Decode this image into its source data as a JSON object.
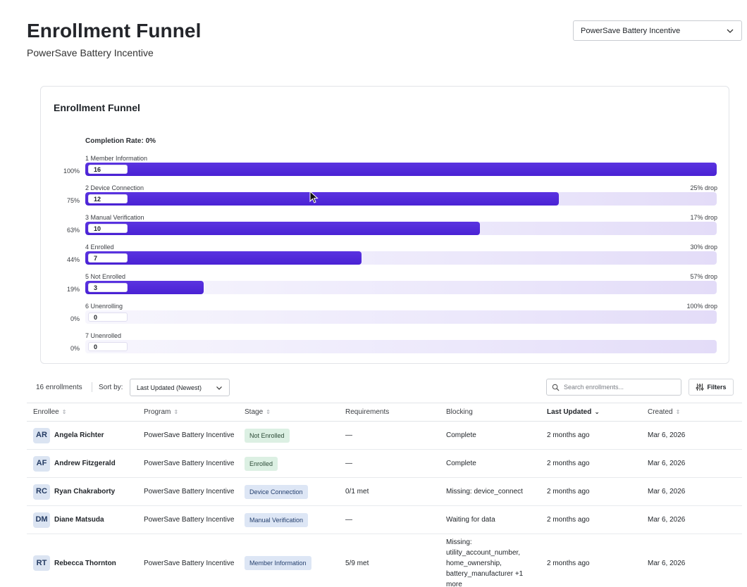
{
  "header": {
    "title": "Enrollment Funnel",
    "subtitle": "PowerSave Battery Incentive",
    "program_select_value": "PowerSave Battery Incentive"
  },
  "funnel": {
    "title": "Enrollment Funnel",
    "completion_label": "Completion Rate:",
    "completion_value": "0%",
    "stages": [
      {
        "label": "1 Member Information",
        "pct": "100%",
        "count": "16",
        "drop": "",
        "fill": 1.0
      },
      {
        "label": "2 Device Connection",
        "pct": "75%",
        "count": "12",
        "drop": "25% drop",
        "fill": 0.75
      },
      {
        "label": "3 Manual Verification",
        "pct": "63%",
        "count": "10",
        "drop": "17% drop",
        "fill": 0.625
      },
      {
        "label": "4 Enrolled",
        "pct": "44%",
        "count": "7",
        "drop": "30% drop",
        "fill": 0.4375
      },
      {
        "label": "5 Not Enrolled",
        "pct": "19%",
        "count": "3",
        "drop": "57% drop",
        "fill": 0.1875
      },
      {
        "label": "6 Unenrolling",
        "pct": "0%",
        "count": "0",
        "drop": "100% drop",
        "fill": 0
      },
      {
        "label": "7 Unenrolled",
        "pct": "0%",
        "count": "0",
        "drop": "",
        "fill": 0
      }
    ],
    "colors": {
      "fill": "#4a22d4",
      "track": "#ece8fb"
    }
  },
  "toolbar": {
    "enrollment_count": "16 enrollments",
    "sort_label": "Sort by:",
    "sort_value": "Last Updated (Newest)",
    "search_placeholder": "Search enrollments...",
    "filters_label": "Filters"
  },
  "table": {
    "columns": [
      "Enrollee",
      "Program",
      "Stage",
      "Requirements",
      "Blocking",
      "Last Updated",
      "Created"
    ],
    "rows": [
      {
        "initials": "AR",
        "name": "Angela Richter",
        "program": "PowerSave Battery Incentive",
        "stage": "Not Enrolled",
        "stage_color": "green",
        "requirements": "—",
        "blocking": "Complete",
        "last_updated": "2 months ago",
        "created": "Mar 6, 2026"
      },
      {
        "initials": "AF",
        "name": "Andrew Fitzgerald",
        "program": "PowerSave Battery Incentive",
        "stage": "Enrolled",
        "stage_color": "green",
        "requirements": "—",
        "blocking": "Complete",
        "last_updated": "2 months ago",
        "created": "Mar 6, 2026"
      },
      {
        "initials": "RC",
        "name": "Ryan Chakraborty",
        "program": "PowerSave Battery Incentive",
        "stage": "Device Connection",
        "stage_color": "blue",
        "requirements": "0/1 met",
        "blocking": "Missing: device_connect",
        "last_updated": "2 months ago",
        "created": "Mar 6, 2026"
      },
      {
        "initials": "DM",
        "name": "Diane Matsuda",
        "program": "PowerSave Battery Incentive",
        "stage": "Manual Verification",
        "stage_color": "blue",
        "requirements": "—",
        "blocking": "Waiting for data",
        "last_updated": "2 months ago",
        "created": "Mar 6, 2026"
      },
      {
        "initials": "RT",
        "name": "Rebecca Thornton",
        "program": "PowerSave Battery Incentive",
        "stage": "Member Information",
        "stage_color": "blue",
        "requirements": "5/9 met",
        "blocking": "Missing: utility_account_number, home_ownership, battery_manufacturer +1 more",
        "last_updated": "2 months ago",
        "created": "Mar 6, 2026"
      }
    ]
  }
}
